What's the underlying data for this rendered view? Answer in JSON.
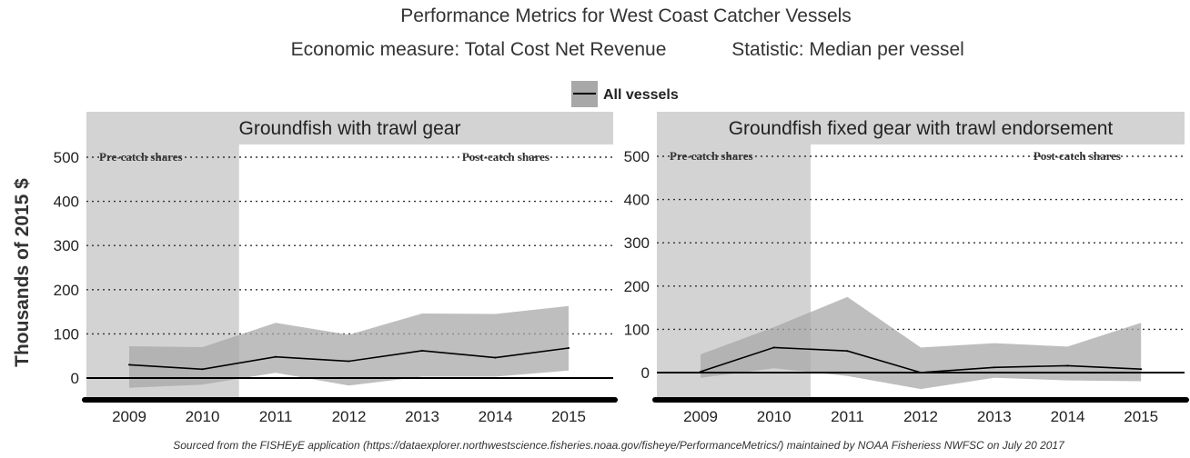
{
  "title": "Performance Metrics for West Coast Catcher Vessels",
  "subtitle_measure": "Economic measure: Total Cost Net Revenue",
  "subtitle_statistic": "Statistic:  Median per vessel",
  "source": "Sourced from the FISHEyE application (https://dataexplorer.northwestscience.fisheries.noaa.gov/fisheye/PerformanceMetrics/) maintained by NOAA Fisheriess NWFSC on  July 20 2017",
  "chart_data": {
    "type": "line",
    "ylabel": "Thousands of 2015 $",
    "legend": {
      "entries": [
        "All vessels"
      ],
      "placement": "top-center"
    },
    "colors": {
      "line": "#000000",
      "band": "#a8a8a8",
      "pre_region": "#d3d3d3",
      "strip": "#d3d3d3"
    },
    "annotations": {
      "pre": "Pre-catch shares",
      "post": "Post-catch shares",
      "pre_end_year": 2010.5
    },
    "panels": [
      {
        "label": "Groundfish with trawl gear",
        "x": [
          2009,
          2010,
          2011,
          2012,
          2013,
          2014,
          2015
        ],
        "ylim": [
          -50,
          525
        ],
        "yticks": [
          0,
          100,
          200,
          300,
          400,
          500
        ],
        "series": [
          {
            "name": "All vessels",
            "values": [
              30,
              20,
              48,
              38,
              62,
              46,
              68
            ],
            "lower": [
              -22,
              -15,
              12,
              -17,
              3,
              3,
              17
            ],
            "upper": [
              72,
              70,
              125,
              98,
              146,
              145,
              163
            ]
          }
        ]
      },
      {
        "label": "Groundfish fixed gear with trawl endorsement",
        "x": [
          2009,
          2010,
          2011,
          2012,
          2013,
          2014,
          2015
        ],
        "ylim": [
          -50,
          525
        ],
        "yticks": [
          0,
          100,
          200,
          300,
          400,
          500
        ],
        "series": [
          {
            "name": "All vessels",
            "values": [
              2,
              58,
              50,
              0,
              12,
              16,
              8
            ],
            "lower": [
              -12,
              10,
              -8,
              -38,
              -12,
              -18,
              -20
            ],
            "upper": [
              42,
              105,
              175,
              58,
              68,
              60,
              115
            ]
          }
        ]
      }
    ]
  }
}
